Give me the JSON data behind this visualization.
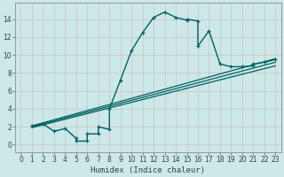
{
  "xlabel": "Humidex (Indice chaleur)",
  "bg_color": "#cce8e8",
  "grid_color": "#b8d8d8",
  "line_color": "#006060",
  "xlim": [
    -0.5,
    23.5
  ],
  "ylim": [
    -0.8,
    15.8
  ],
  "xticks": [
    0,
    1,
    2,
    3,
    4,
    5,
    6,
    7,
    8,
    9,
    10,
    11,
    12,
    13,
    14,
    15,
    16,
    17,
    18,
    19,
    20,
    21,
    22,
    23
  ],
  "yticks": [
    0,
    2,
    4,
    6,
    8,
    10,
    12,
    14
  ],
  "curve_x": [
    1,
    2,
    3,
    4,
    5,
    5,
    6,
    6,
    7,
    7,
    8,
    8,
    9,
    10,
    11,
    12,
    13,
    14,
    15,
    15,
    16,
    16,
    17,
    18,
    19,
    20,
    21,
    21,
    22,
    23
  ],
  "curve_y": [
    2.1,
    2.3,
    1.5,
    1.8,
    0.7,
    0.4,
    0.4,
    1.2,
    1.2,
    2.0,
    1.7,
    4.0,
    7.2,
    10.5,
    12.5,
    14.2,
    14.8,
    14.2,
    13.9,
    14.0,
    13.8,
    11.0,
    12.7,
    9.0,
    8.7,
    8.7,
    8.8,
    9.0,
    9.2,
    9.5
  ],
  "line1_x": [
    1,
    23
  ],
  "line1_y": [
    2.1,
    9.6
  ],
  "line2_x": [
    1,
    23
  ],
  "line2_y": [
    1.9,
    8.8
  ],
  "line3_x": [
    1,
    23
  ],
  "line3_y": [
    2.0,
    9.2
  ]
}
